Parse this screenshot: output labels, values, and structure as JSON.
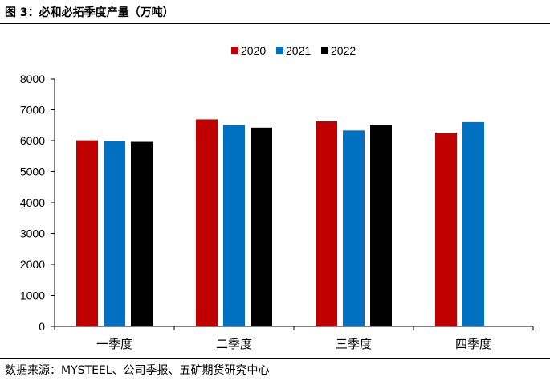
{
  "header": {
    "title": "图 3：必和必拓季度产量（万吨）"
  },
  "footer": {
    "source": "数据来源：MYSTEEL、公司季报、五矿期货研究中心"
  },
  "chart_data": {
    "type": "bar",
    "title": "",
    "xlabel": "",
    "ylabel": "",
    "categories": [
      "一季度",
      "二季度",
      "三季度",
      "四季度"
    ],
    "series": [
      {
        "name": "2020",
        "color": "#C00000",
        "values": [
          6010,
          6690,
          6630,
          6260
        ]
      },
      {
        "name": "2021",
        "color": "#0070C0",
        "values": [
          5980,
          6510,
          6330,
          6600
        ]
      },
      {
        "name": "2022",
        "color": "#000000",
        "values": [
          5960,
          6420,
          6510,
          null
        ]
      }
    ],
    "ylim": [
      0,
      8000
    ],
    "yticks": [
      0,
      1000,
      2000,
      3000,
      4000,
      5000,
      6000,
      7000,
      8000
    ],
    "grid": false,
    "legend_position": "top-center"
  }
}
